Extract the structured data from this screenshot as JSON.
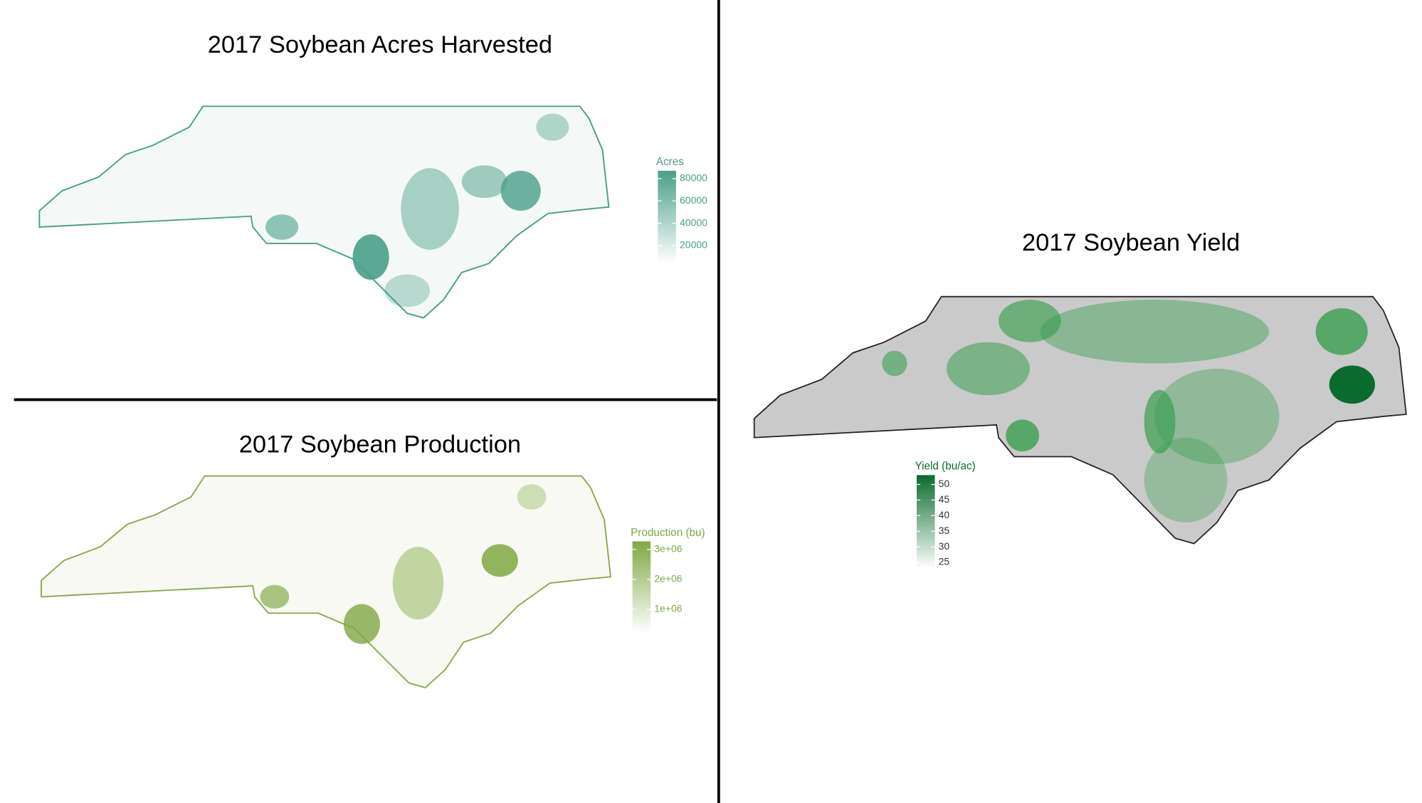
{
  "acres": {
    "title": "2017 Soybean Acres Harvested",
    "legend": {
      "title": "Acres",
      "color": "#4a9e88",
      "lim": [
        4000,
        87000
      ],
      "ticks": [
        20000,
        40000,
        60000,
        80000
      ]
    }
  },
  "production": {
    "title": "2017 Soybean Production",
    "legend": {
      "title": "Production (bu)",
      "color": "#7fa843",
      "lim": [
        200000,
        3270000
      ],
      "ticks": [
        {
          "value": 1000000,
          "label": "1e+06"
        },
        {
          "value": 2000000,
          "label": "2e+06"
        },
        {
          "value": 3000000,
          "label": "3e+06"
        }
      ]
    }
  },
  "yield": {
    "title": "2017 Soybean Yield",
    "legend": {
      "title": "Yield (bu/ac)",
      "color": "#0b6b2e",
      "lim": [
        23,
        53
      ],
      "ticks": [
        25,
        30,
        35,
        40,
        45,
        50
      ]
    }
  }
}
